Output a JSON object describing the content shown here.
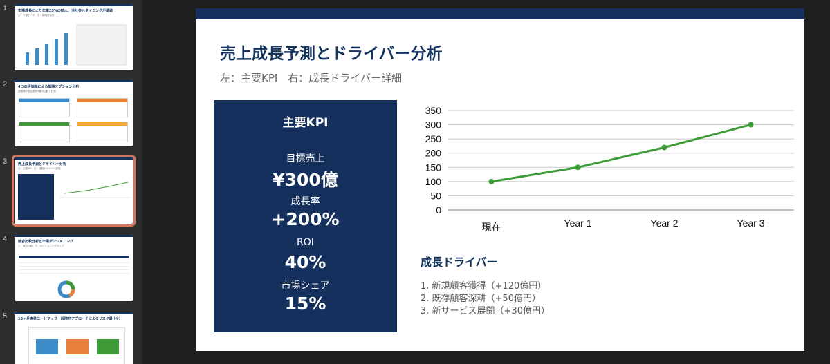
{
  "sidebar": {
    "slides": [
      {
        "number": "1",
        "title": "市場成長により年率25%の拡大、当社参入タイミングが最適",
        "subtitle": "左：市場データ　右：戦略的含意"
      },
      {
        "number": "2",
        "title": "4つの評価軸による戦略オプション分析",
        "subtitle": "各戦略の適合度を4軸の比較で評価"
      },
      {
        "number": "3",
        "title": "売上成長予測とドライバー分析",
        "subtitle": "左：主要KPI　右：成長ドライバー詳細"
      },
      {
        "number": "4",
        "title": "競合比較分析と市場ポジショニング",
        "subtitle": "上：競合比較　下：ポジショニングマップ"
      },
      {
        "number": "5",
        "title": "18ヶ月実装ロードマップ｜段階的アプローチによるリスク最小化",
        "subtitle": ""
      }
    ],
    "selected_index": 2
  },
  "slide": {
    "title": "売上成長予測とドライバー分析",
    "subtitle": "左：主要KPI　右：成長ドライバー詳細",
    "kpi": {
      "heading": "主要KPI",
      "items": [
        {
          "label": "目標売上",
          "value": "¥300億"
        },
        {
          "label": "成長率",
          "value": "+200%"
        },
        {
          "label": "ROI",
          "value": "40%"
        },
        {
          "label": "市場シェア",
          "value": "15%"
        }
      ]
    },
    "drivers": {
      "heading": "成長ドライバー",
      "items": [
        "1. 新規顧客獲得（+120億円）",
        "2. 既存顧客深耕（+50億円）",
        "3. 新サービス展開（+30億円）"
      ]
    }
  },
  "chart_data": {
    "type": "line",
    "categories": [
      "現在",
      "Year 1",
      "Year 2",
      "Year 3"
    ],
    "series": [
      {
        "values": [
          100,
          150,
          220,
          300
        ]
      }
    ],
    "ylim": [
      0,
      350
    ],
    "yticks": [
      0,
      50,
      100,
      150,
      200,
      250,
      300,
      350
    ],
    "grid": true,
    "line_color": "#3e9a36",
    "title": "",
    "xlabel": "",
    "ylabel": ""
  }
}
